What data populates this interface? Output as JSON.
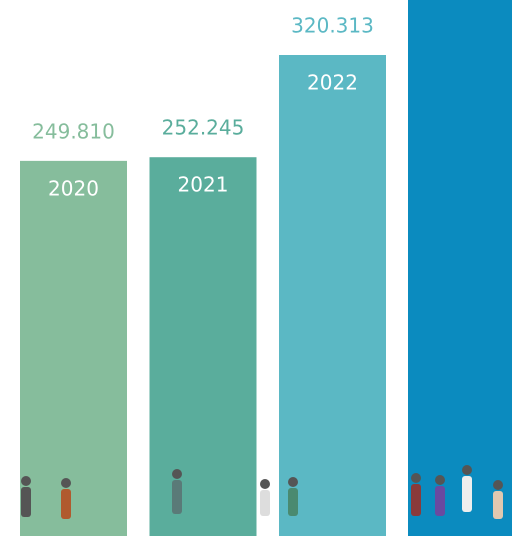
{
  "chart_data": {
    "type": "bar",
    "categories": [
      "2020",
      "2021",
      "2022"
    ],
    "values": [
      249810,
      252245,
      320313
    ],
    "value_labels": [
      "249.810",
      "252.245",
      "320.313"
    ],
    "colors": [
      "#86bd9c",
      "#5aad9c",
      "#5bb8c4"
    ]
  }
}
